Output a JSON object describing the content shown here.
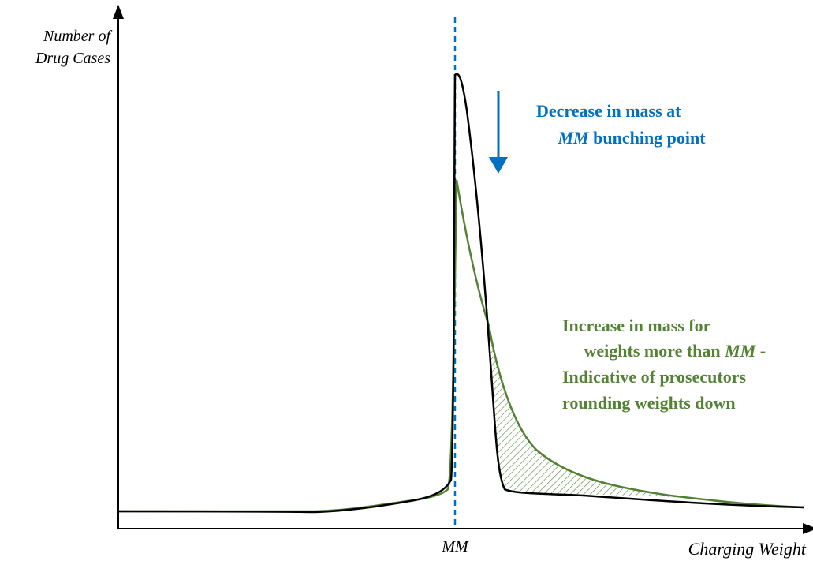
{
  "axes": {
    "y_label_line1": "Number of",
    "y_label_line2": "Drug Cases",
    "x_label": "Charging Weight",
    "x_tick_label": "MM"
  },
  "callouts": {
    "decrease": {
      "line1": "Decrease in mass at",
      "line2_italic": "MM",
      "line2_rest": " bunching point"
    },
    "increase": {
      "line1": "Increase in mass for",
      "line2_lead": "weights more than ",
      "line2_italic": "MM",
      "line2_trail": " -",
      "line3": "Indicative of prosecutors",
      "line4": "rounding weights down"
    }
  },
  "curves": [
    {
      "role": "original-distribution",
      "color": "#000000"
    },
    {
      "role": "shifted-distribution",
      "color": "#548235"
    }
  ],
  "colors": {
    "threshold_line": "#0070c0",
    "decrease_text": "#0070c0",
    "increase_text": "#548235",
    "hatch_fill": "#548235",
    "axes": "#000000"
  }
}
